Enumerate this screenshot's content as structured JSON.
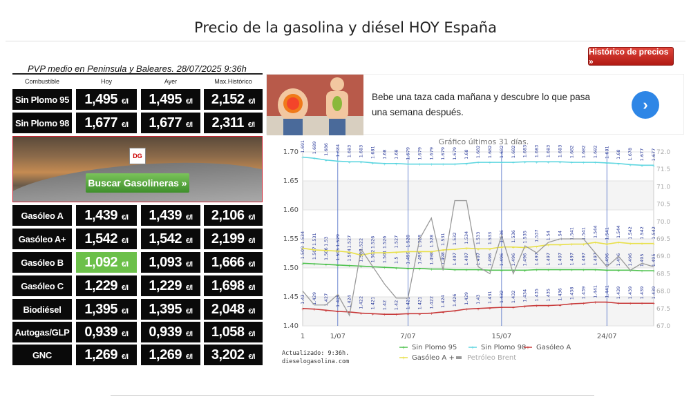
{
  "page": {
    "title": "Precio de la gasolina y diésel HOY España"
  },
  "historico_button": "Histórico de precios »",
  "table": {
    "caption": "PVP medio en Peninsula y Baleares. 28/07/2025 9:36h",
    "headers": [
      "Combustible",
      "Hoy",
      "Ayer",
      "Max.Histórico"
    ],
    "unit": "€/l",
    "rows": [
      {
        "name": "Sin Plomo 95",
        "hoy": "1,495",
        "ayer": "1,495",
        "max": "2,152"
      },
      {
        "name": "Sin Plomo 98",
        "hoy": "1,677",
        "ayer": "1,677",
        "max": "2,311"
      },
      {
        "name": "Gasóleo A",
        "hoy": "1,439",
        "ayer": "1,439",
        "max": "2,106"
      },
      {
        "name": "Gasóleo A+",
        "hoy": "1,542",
        "ayer": "1,542",
        "max": "2,199"
      },
      {
        "name": "Gasóleo B",
        "hoy": "1,092",
        "ayer": "1,093",
        "max": "1,666",
        "hoy_highlight": true
      },
      {
        "name": "Gasóleo C",
        "hoy": "1,229",
        "ayer": "1,229",
        "max": "1,698"
      },
      {
        "name": "Biodiésel",
        "hoy": "1,395",
        "ayer": "1,395",
        "max": "2,048"
      },
      {
        "name": "Autogas/GLP",
        "hoy": "0,939",
        "ayer": "0,939",
        "max": "1,058"
      },
      {
        "name": "GNC",
        "hoy": "1,269",
        "ayer": "1,269",
        "max": "3,202"
      }
    ]
  },
  "banner": {
    "button": "Buscar Gasolineras »",
    "logo": "DG"
  },
  "ad": {
    "text": "Bebe una taza cada mañana y descubre lo que pasa una semana después.",
    "arrow": "›"
  },
  "footnote": {
    "line1": "Actualizado: 9:36h.",
    "line2": "dieselogasolina.com"
  },
  "colors": {
    "sp95": "#4fc24f",
    "sp98": "#5fd6e0",
    "gasoleoA": "#c83a3a",
    "gasoleoAplus": "#e8e04a",
    "brent": "#999999"
  },
  "chart_data": {
    "type": "line",
    "title": "Gráfico últimos 31 días.",
    "x": [
      "1",
      "2",
      "3",
      "4",
      "5",
      "6",
      "7",
      "8",
      "9",
      "10",
      "11",
      "12",
      "13",
      "14",
      "15",
      "16",
      "17",
      "18",
      "19",
      "20",
      "21",
      "22",
      "23",
      "24",
      "25",
      "26",
      "27",
      "28",
      "29",
      "30",
      "31"
    ],
    "x_tick_labels": [
      "1",
      "1/07",
      "7/07",
      "15/07",
      "24/07"
    ],
    "ylim": [
      1.4,
      1.7
    ],
    "y_ticks": [
      "1.40",
      "1.45",
      "1.50",
      "1.55",
      "1.60",
      "1.65",
      "1.70"
    ],
    "y2lim": [
      67.0,
      72.0
    ],
    "y2_ticks": [
      "67.0",
      "67.5",
      "68.0",
      "68.5",
      "69.0",
      "69.5",
      "70.0",
      "70.5",
      "71.0",
      "71.5",
      "72.0"
    ],
    "series": [
      {
        "name": "Sin Plomo 95",
        "color": "#4fc24f",
        "values": [
          1.508,
          1.507,
          1.506,
          1.505,
          1.504,
          1.503,
          1.502,
          1.501,
          1.5,
          1.499,
          1.499,
          1.498,
          1.498,
          1.497,
          1.497,
          1.497,
          1.496,
          1.496,
          1.496,
          1.496,
          1.497,
          1.497,
          1.497,
          1.497,
          1.497,
          1.497,
          1.496,
          1.496,
          1.496,
          1.495,
          1.495
        ],
        "labels": [
          "1.508",
          "1.507",
          "1.506",
          "1.505",
          "1.504",
          "1.503",
          "1.502",
          "1.501",
          "1.5",
          "1.499",
          "1.499",
          "1.498",
          "1.498",
          "1.497",
          "1.497",
          "1.497",
          "1.496",
          "1.496",
          "1.496",
          "1.496",
          "1.497",
          "1.497",
          "1.497",
          "1.497",
          "1.497",
          "1.497",
          "1.496",
          "1.496",
          "1.496",
          "1.495",
          "1.495"
        ]
      },
      {
        "name": "Sin Plomo 98",
        "color": "#5fd6e0",
        "values": [
          1.691,
          1.689,
          1.686,
          1.684,
          1.683,
          1.683,
          1.681,
          1.68,
          1.68,
          1.679,
          1.679,
          1.679,
          1.679,
          1.679,
          1.68,
          1.682,
          1.682,
          1.682,
          1.682,
          1.683,
          1.683,
          1.683,
          1.683,
          1.682,
          1.682,
          1.682,
          1.681,
          1.68,
          1.678,
          1.677,
          1.677
        ],
        "labels": [
          "1.691",
          "1.689",
          "1.686",
          "1.684",
          "1.683",
          "1.683",
          "1.681",
          "1.68",
          "1.68",
          "1.679",
          "1.679",
          "1.679",
          "1.679",
          "1.679",
          "1.68",
          "1.682",
          "1.682",
          "1.682",
          "1.682",
          "1.683",
          "1.683",
          "1.683",
          "1.683",
          "1.682",
          "1.682",
          "1.682",
          "1.681",
          "1.68",
          "1.678",
          "1.677",
          "1.677"
        ]
      },
      {
        "name": "Gasóleo A",
        "color": "#c83a3a",
        "values": [
          1.43,
          1.429,
          1.427,
          1.425,
          1.424,
          1.422,
          1.421,
          1.42,
          1.42,
          1.421,
          1.421,
          1.422,
          1.424,
          1.426,
          1.429,
          1.43,
          1.431,
          1.432,
          1.432,
          1.434,
          1.435,
          1.435,
          1.436,
          1.438,
          1.439,
          1.441,
          1.441,
          1.439,
          1.439,
          1.439,
          1.439
        ],
        "labels": [
          "1.43",
          "1.429",
          "1.427",
          "1.425",
          "1.424",
          "1.422",
          "1.421",
          "1.42",
          "1.42",
          "1.421",
          "1.421",
          "1.422",
          "1.424",
          "1.426",
          "1.429",
          "1.43",
          "1.431",
          "1.432",
          "1.432",
          "1.434",
          "1.435",
          "1.435",
          "1.436",
          "1.438",
          "1.439",
          "1.441",
          "1.441",
          "1.439",
          "1.439",
          "1.439",
          "1.439"
        ]
      },
      {
        "name": "Gasóleo A +",
        "color": "#e8e04a",
        "values": [
          1.534,
          1.531,
          1.53,
          1.529,
          1.527,
          1.522,
          1.526,
          1.526,
          1.527,
          1.528,
          1.528,
          1.528,
          1.531,
          1.532,
          1.534,
          1.533,
          1.533,
          1.536,
          1.536,
          1.535,
          1.537,
          1.54,
          1.54,
          1.541,
          1.541,
          1.544,
          1.541,
          1.544,
          1.542,
          1.542,
          1.542
        ],
        "labels": [
          "1.534",
          "1.531",
          "1.53",
          "1.529",
          "1.527",
          "1.522",
          "1.526",
          "1.526",
          "1.527",
          "1.528",
          "1.528",
          "1.528",
          "1.531",
          "1.532",
          "1.534",
          "1.533",
          "1.533",
          "1.536",
          "1.536",
          "1.535",
          "1.537",
          "1.54",
          "1.54",
          "1.541",
          "1.541",
          "1.544",
          "1.541",
          "1.544",
          "1.542",
          "1.542",
          "1.542"
        ]
      },
      {
        "name": "Petróleo Brent",
        "color": "#999999",
        "axis": "right",
        "values": [
          68.0,
          67.6,
          67.6,
          67.9,
          67.3,
          69.2,
          68.7,
          68.2,
          67.8,
          67.8,
          69.5,
          70.1,
          68.6,
          70.6,
          70.6,
          68.7,
          68.5,
          69.6,
          68.5,
          69.3,
          69.1,
          69.4,
          69.5,
          69.5,
          69.5,
          69.1,
          68.7,
          69.0,
          68.6,
          68.8,
          68.7
        ]
      }
    ],
    "legend": [
      "Sin Plomo 95",
      "Sin Plomo 98",
      "Gasóleo A",
      "Gasóleo A +",
      "Petróleo Brent"
    ],
    "grid": true
  }
}
